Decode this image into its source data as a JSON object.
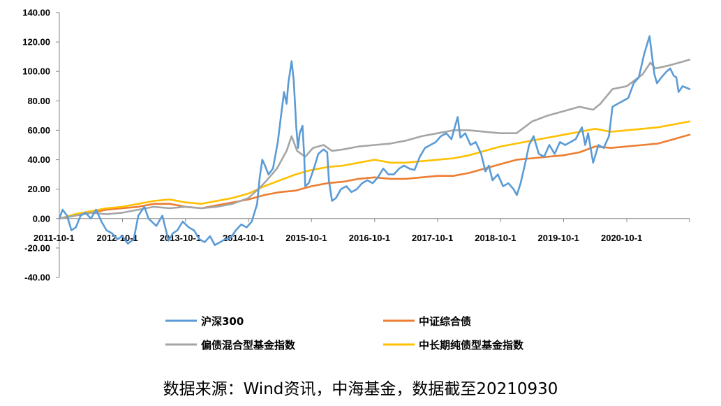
{
  "chart_data": {
    "type": "line",
    "title": "",
    "xlabel": "",
    "ylabel": "",
    "ylim": [
      -40,
      140
    ],
    "xlim": [
      "2011-10-1",
      "2021-09-30"
    ],
    "y_ticks": [
      "140.00",
      "120.00",
      "100.00",
      "80.00",
      "60.00",
      "40.00",
      "20.00",
      "0.00",
      "-20.00",
      "-40.00"
    ],
    "x_ticks": [
      "2011-10-1",
      "2012-10-1",
      "2013-10-1",
      "2014-10-1",
      "2015-10-1",
      "2016-10-1",
      "2017-10-1",
      "2018-10-1",
      "2019-10-1",
      "2020-10-1"
    ],
    "grid": false,
    "legend_position": "bottom",
    "series": [
      {
        "name": "沪深300",
        "color": "#5b9bd5",
        "points": [
          [
            "2011-10-1",
            0
          ],
          [
            "2011-10-20",
            6
          ],
          [
            "2011-11-15",
            2
          ],
          [
            "2011-12-10",
            -8
          ],
          [
            "2012-01-05",
            -6
          ],
          [
            "2012-02-01",
            2
          ],
          [
            "2012-03-01",
            4
          ],
          [
            "2012-04-01",
            0
          ],
          [
            "2012-05-01",
            6
          ],
          [
            "2012-06-01",
            -2
          ],
          [
            "2012-07-01",
            -8
          ],
          [
            "2012-08-01",
            -10
          ],
          [
            "2012-09-01",
            -14
          ],
          [
            "2012-10-01",
            -12
          ],
          [
            "2012-11-01",
            -17
          ],
          [
            "2012-12-05",
            -14
          ],
          [
            "2013-01-01",
            2
          ],
          [
            "2013-02-05",
            8
          ],
          [
            "2013-03-01",
            0
          ],
          [
            "2013-04-15",
            -5
          ],
          [
            "2013-05-20",
            2
          ],
          [
            "2013-06-25",
            -15
          ],
          [
            "2013-07-20",
            -10
          ],
          [
            "2013-08-15",
            -8
          ],
          [
            "2013-09-15",
            -2
          ],
          [
            "2013-10-20",
            -6
          ],
          [
            "2013-11-20",
            -8
          ],
          [
            "2013-12-20",
            -14
          ],
          [
            "2014-01-20",
            -16
          ],
          [
            "2014-02-20",
            -12
          ],
          [
            "2014-03-20",
            -18
          ],
          [
            "2014-04-20",
            -16
          ],
          [
            "2014-05-20",
            -14
          ],
          [
            "2014-06-20",
            -13
          ],
          [
            "2014-07-20",
            -8
          ],
          [
            "2014-08-20",
            -4
          ],
          [
            "2014-09-20",
            -6
          ],
          [
            "2014-10-20",
            -2
          ],
          [
            "2014-11-20",
            10
          ],
          [
            "2014-12-05",
            28
          ],
          [
            "2014-12-20",
            40
          ],
          [
            "2015-01-05",
            36
          ],
          [
            "2015-01-25",
            30
          ],
          [
            "2015-02-20",
            34
          ],
          [
            "2015-03-20",
            52
          ],
          [
            "2015-04-10",
            72
          ],
          [
            "2015-04-25",
            86
          ],
          [
            "2015-05-10",
            78
          ],
          [
            "2015-05-20",
            92
          ],
          [
            "2015-06-08",
            107
          ],
          [
            "2015-06-20",
            94
          ],
          [
            "2015-07-05",
            62
          ],
          [
            "2015-07-15",
            48
          ],
          [
            "2015-07-25",
            58
          ],
          [
            "2015-08-10",
            63
          ],
          [
            "2015-08-20",
            42
          ],
          [
            "2015-08-26",
            22
          ],
          [
            "2015-09-15",
            24
          ],
          [
            "2015-10-15",
            34
          ],
          [
            "2015-11-10",
            44
          ],
          [
            "2015-12-10",
            47
          ],
          [
            "2015-12-31",
            45
          ],
          [
            "2016-01-10",
            26
          ],
          [
            "2016-01-28",
            12
          ],
          [
            "2016-02-20",
            14
          ],
          [
            "2016-03-20",
            20
          ],
          [
            "2016-04-20",
            22
          ],
          [
            "2016-05-20",
            18
          ],
          [
            "2016-06-20",
            20
          ],
          [
            "2016-07-20",
            24
          ],
          [
            "2016-08-20",
            26
          ],
          [
            "2016-09-20",
            24
          ],
          [
            "2016-10-20",
            28
          ],
          [
            "2016-11-20",
            34
          ],
          [
            "2016-12-20",
            30
          ],
          [
            "2017-01-20",
            30
          ],
          [
            "2017-02-20",
            34
          ],
          [
            "2017-03-20",
            36
          ],
          [
            "2017-04-20",
            34
          ],
          [
            "2017-05-20",
            33
          ],
          [
            "2017-06-20",
            42
          ],
          [
            "2017-07-20",
            48
          ],
          [
            "2017-08-20",
            50
          ],
          [
            "2017-09-20",
            52
          ],
          [
            "2017-10-20",
            56
          ],
          [
            "2017-11-20",
            58
          ],
          [
            "2017-12-20",
            54
          ],
          [
            "2018-01-25",
            69
          ],
          [
            "2018-02-10",
            55
          ],
          [
            "2018-03-10",
            58
          ],
          [
            "2018-04-10",
            50
          ],
          [
            "2018-05-10",
            52
          ],
          [
            "2018-06-10",
            44
          ],
          [
            "2018-07-05",
            32
          ],
          [
            "2018-07-25",
            36
          ],
          [
            "2018-08-15",
            26
          ],
          [
            "2018-09-15",
            30
          ],
          [
            "2018-10-15",
            22
          ],
          [
            "2018-11-15",
            24
          ],
          [
            "2018-12-15",
            20
          ],
          [
            "2019-01-03",
            16
          ],
          [
            "2019-01-25",
            24
          ],
          [
            "2019-02-25",
            40
          ],
          [
            "2019-03-15",
            50
          ],
          [
            "2019-04-10",
            56
          ],
          [
            "2019-05-10",
            44
          ],
          [
            "2019-06-10",
            42
          ],
          [
            "2019-07-10",
            50
          ],
          [
            "2019-08-10",
            44
          ],
          [
            "2019-09-10",
            52
          ],
          [
            "2019-10-10",
            50
          ],
          [
            "2019-11-10",
            52
          ],
          [
            "2019-12-10",
            54
          ],
          [
            "2020-01-15",
            62
          ],
          [
            "2020-02-03",
            50
          ],
          [
            "2020-02-20",
            58
          ],
          [
            "2020-03-20",
            38
          ],
          [
            "2020-04-20",
            50
          ],
          [
            "2020-05-20",
            48
          ],
          [
            "2020-06-20",
            56
          ],
          [
            "2020-07-10",
            76
          ],
          [
            "2020-08-10",
            78
          ],
          [
            "2020-09-10",
            80
          ],
          [
            "2020-10-10",
            82
          ],
          [
            "2020-11-10",
            92
          ],
          [
            "2020-12-10",
            96
          ],
          [
            "2021-01-10",
            112
          ],
          [
            "2021-02-10",
            124
          ],
          [
            "2021-02-25",
            110
          ],
          [
            "2021-03-10",
            98
          ],
          [
            "2021-03-25",
            92
          ],
          [
            "2021-04-20",
            96
          ],
          [
            "2021-05-20",
            100
          ],
          [
            "2021-06-10",
            102
          ],
          [
            "2021-06-30",
            97
          ],
          [
            "2021-07-15",
            96
          ],
          [
            "2021-07-28",
            86
          ],
          [
            "2021-08-20",
            90
          ],
          [
            "2021-09-30",
            88
          ]
        ]
      },
      {
        "name": "中证综合债",
        "color": "#ed7d31",
        "points": [
          [
            "2011-10-1",
            0
          ],
          [
            "2012-01-01",
            2
          ],
          [
            "2012-04-01",
            4
          ],
          [
            "2012-07-01",
            6
          ],
          [
            "2012-10-01",
            7
          ],
          [
            "2013-01-01",
            8
          ],
          [
            "2013-04-01",
            10
          ],
          [
            "2013-07-01",
            10
          ],
          [
            "2013-10-01",
            8
          ],
          [
            "2014-01-01",
            7
          ],
          [
            "2014-04-01",
            9
          ],
          [
            "2014-07-01",
            11
          ],
          [
            "2014-10-01",
            13
          ],
          [
            "2015-01-01",
            16
          ],
          [
            "2015-04-01",
            18
          ],
          [
            "2015-07-01",
            19
          ],
          [
            "2015-10-01",
            22
          ],
          [
            "2016-01-01",
            24
          ],
          [
            "2016-04-01",
            25
          ],
          [
            "2016-07-01",
            27
          ],
          [
            "2016-10-01",
            28
          ],
          [
            "2017-01-01",
            27
          ],
          [
            "2017-04-01",
            27
          ],
          [
            "2017-07-01",
            28
          ],
          [
            "2017-10-01",
            29
          ],
          [
            "2018-01-01",
            29
          ],
          [
            "2018-04-01",
            31
          ],
          [
            "2018-07-01",
            34
          ],
          [
            "2018-10-01",
            37
          ],
          [
            "2019-01-01",
            40
          ],
          [
            "2019-04-01",
            41
          ],
          [
            "2019-07-01",
            42
          ],
          [
            "2019-10-01",
            43
          ],
          [
            "2020-01-01",
            45
          ],
          [
            "2020-04-01",
            49
          ],
          [
            "2020-07-01",
            48
          ],
          [
            "2020-10-01",
            49
          ],
          [
            "2021-01-01",
            50
          ],
          [
            "2021-04-01",
            51
          ],
          [
            "2021-07-01",
            54
          ],
          [
            "2021-09-30",
            57
          ]
        ]
      },
      {
        "name": "偏债混合型基金指数",
        "color": "#a5a5a5",
        "points": [
          [
            "2011-10-1",
            0
          ],
          [
            "2012-01-01",
            2
          ],
          [
            "2012-04-01",
            4
          ],
          [
            "2012-07-01",
            3
          ],
          [
            "2012-10-01",
            4
          ],
          [
            "2013-01-01",
            6
          ],
          [
            "2013-04-01",
            8
          ],
          [
            "2013-07-01",
            7
          ],
          [
            "2013-10-01",
            8
          ],
          [
            "2014-01-01",
            7
          ],
          [
            "2014-04-01",
            8
          ],
          [
            "2014-07-01",
            10
          ],
          [
            "2014-10-01",
            14
          ],
          [
            "2014-12-15",
            22
          ],
          [
            "2015-01-15",
            26
          ],
          [
            "2015-03-15",
            34
          ],
          [
            "2015-05-10",
            46
          ],
          [
            "2015-06-08",
            56
          ],
          [
            "2015-07-10",
            46
          ],
          [
            "2015-08-26",
            42
          ],
          [
            "2015-10-10",
            48
          ],
          [
            "2015-12-10",
            50
          ],
          [
            "2016-01-28",
            46
          ],
          [
            "2016-04-01",
            47
          ],
          [
            "2016-07-01",
            49
          ],
          [
            "2016-10-01",
            50
          ],
          [
            "2017-01-01",
            51
          ],
          [
            "2017-04-01",
            53
          ],
          [
            "2017-07-01",
            56
          ],
          [
            "2017-10-01",
            58
          ],
          [
            "2018-01-01",
            60
          ],
          [
            "2018-04-01",
            60
          ],
          [
            "2018-07-01",
            59
          ],
          [
            "2018-10-01",
            58
          ],
          [
            "2019-01-01",
            58
          ],
          [
            "2019-04-01",
            66
          ],
          [
            "2019-07-01",
            70
          ],
          [
            "2019-10-01",
            73
          ],
          [
            "2020-01-01",
            76
          ],
          [
            "2020-03-20",
            74
          ],
          [
            "2020-05-01",
            78
          ],
          [
            "2020-07-10",
            88
          ],
          [
            "2020-10-01",
            90
          ],
          [
            "2021-01-01",
            98
          ],
          [
            "2021-02-15",
            106
          ],
          [
            "2021-03-15",
            102
          ],
          [
            "2021-06-01",
            104
          ],
          [
            "2021-08-01",
            106
          ],
          [
            "2021-09-30",
            108
          ]
        ]
      },
      {
        "name": "中长期纯债型基金指数",
        "color": "#ffc000",
        "points": [
          [
            "2011-10-1",
            0
          ],
          [
            "2012-01-01",
            3
          ],
          [
            "2012-04-01",
            5
          ],
          [
            "2012-07-01",
            7
          ],
          [
            "2012-10-01",
            8
          ],
          [
            "2013-01-01",
            10
          ],
          [
            "2013-04-01",
            12
          ],
          [
            "2013-07-01",
            13
          ],
          [
            "2013-10-01",
            11
          ],
          [
            "2014-01-01",
            10
          ],
          [
            "2014-04-01",
            12
          ],
          [
            "2014-07-01",
            14
          ],
          [
            "2014-10-01",
            17
          ],
          [
            "2015-01-01",
            22
          ],
          [
            "2015-04-01",
            26
          ],
          [
            "2015-07-01",
            30
          ],
          [
            "2015-10-01",
            33
          ],
          [
            "2016-01-01",
            35
          ],
          [
            "2016-04-01",
            36
          ],
          [
            "2016-07-01",
            38
          ],
          [
            "2016-10-01",
            40
          ],
          [
            "2017-01-01",
            38
          ],
          [
            "2017-04-01",
            38
          ],
          [
            "2017-07-01",
            39
          ],
          [
            "2017-10-01",
            40
          ],
          [
            "2018-01-01",
            41
          ],
          [
            "2018-04-01",
            43
          ],
          [
            "2018-07-01",
            46
          ],
          [
            "2018-10-01",
            49
          ],
          [
            "2019-01-01",
            51
          ],
          [
            "2019-04-01",
            53
          ],
          [
            "2019-07-01",
            55
          ],
          [
            "2019-10-01",
            57
          ],
          [
            "2020-01-01",
            59
          ],
          [
            "2020-04-01",
            61
          ],
          [
            "2020-07-01",
            59
          ],
          [
            "2020-10-01",
            60
          ],
          [
            "2021-01-01",
            61
          ],
          [
            "2021-04-01",
            62
          ],
          [
            "2021-07-01",
            64
          ],
          [
            "2021-09-30",
            66
          ]
        ]
      }
    ]
  },
  "source_note": "数据来源：Wind资讯，中海基金，数据截至20210930"
}
